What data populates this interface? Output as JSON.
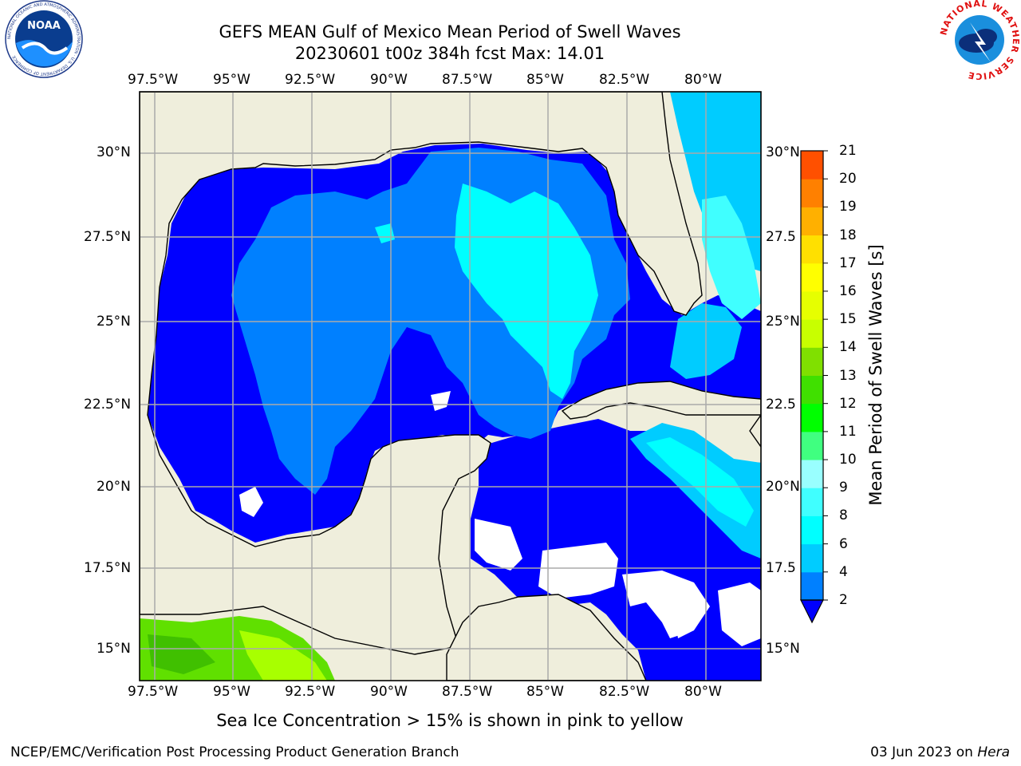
{
  "title_line1": "GEFS MEAN Gulf of Mexico Mean Period of Swell Waves",
  "title_line2": "20230601 t00z 384h fcst   Max: 14.01",
  "lon_labels": [
    "97.5°W",
    "95°W",
    "92.5°W",
    "90°W",
    "87.5°W",
    "85°W",
    "82.5°W",
    "80°W"
  ],
  "lat_labels": [
    "30°N",
    "27.5°N",
    "25°N",
    "22.5°N",
    "20°N",
    "17.5°N",
    "15°N"
  ],
  "lat_labels_right": [
    "30°N",
    "27.5",
    "25°N",
    "22.5",
    "20°N",
    "17.5",
    "15°N"
  ],
  "colorbar": {
    "label": "Mean Period of Swell Waves [s]",
    "ticks": [
      "2",
      "4",
      "6",
      "8",
      "9",
      "10",
      "11",
      "12",
      "13",
      "14",
      "15",
      "16",
      "17",
      "18",
      "19",
      "20",
      "21"
    ],
    "colors": [
      "#0000ff",
      "#0080ff",
      "#00ccff",
      "#00ffff",
      "#40ffff",
      "#99ffff",
      "#40ff80",
      "#00ff00",
      "#40e000",
      "#80e000",
      "#c8ff00",
      "#e6ff00",
      "#ffff00",
      "#ffe000",
      "#ffb000",
      "#ff8000",
      "#ff5000",
      "#ff2000",
      "#ff0000"
    ]
  },
  "sea_ice_note": "Sea Ice Concentration > 15% is shown in pink to yellow",
  "footer_left": "NCEP/EMC/Verification Post Processing Product Generation Branch",
  "footer_right_date": "03 Jun 2023 on ",
  "footer_right_host": "Hera",
  "logo_left": "NOAA",
  "logo_left_ring": "NATIONAL OCEANIC AND ATMOSPHERIC ADMINISTRATION · U.S. DEPARTMENT OF COMMERCE",
  "logo_right_ring": "NATIONAL WEATHER SERVICE"
}
